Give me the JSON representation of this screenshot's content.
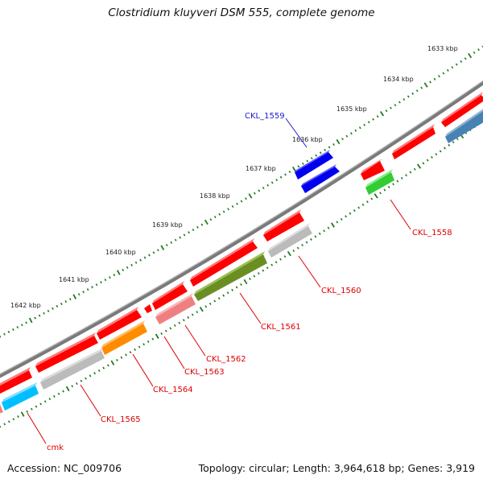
{
  "title": "Clostridium kluyveri DSM 555, complete genome",
  "footer": {
    "accession": "Accession: NC_009706",
    "summary": "Topology: circular; Length: 3,964,618 bp; Genes: 3,919"
  },
  "colors": {
    "backbone": "#7a7a7a",
    "forward_strand": "#ff0000",
    "ticks": "#1e7a1e",
    "label_reverse": "#dd0000",
    "label_forward": "#1a1acc"
  },
  "scale_ticks": [
    "1633 kbp",
    "1634 kbp",
    "1635 kbp",
    "1636 kbp",
    "1637 kbp",
    "1638 kbp",
    "1639 kbp",
    "1640 kbp",
    "1641 kbp",
    "1642 kbp"
  ],
  "gene_labels": [
    "CKL_1559",
    "CKL_1558",
    "CKL_1560",
    "CKL_1561",
    "CKL_1562",
    "CKL_1563",
    "CKL_1564",
    "CKL_1565",
    "cmk"
  ]
}
